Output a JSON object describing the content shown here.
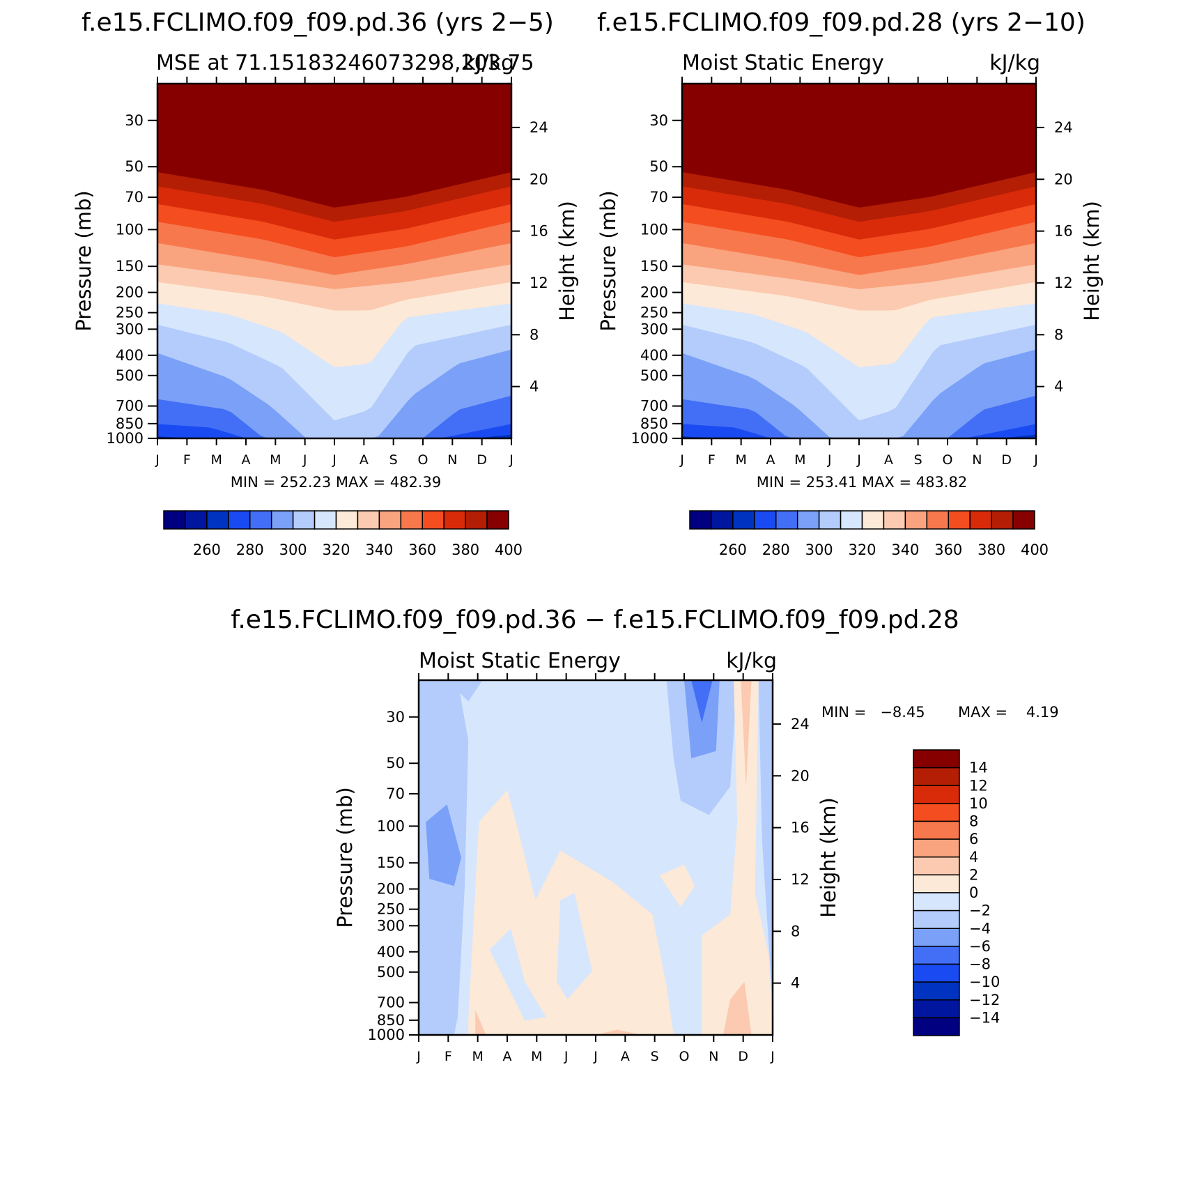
{
  "colors": {
    "scale": [
      "#000080",
      "#00169e",
      "#0033bf",
      "#1a4bf2",
      "#426ff5",
      "#7aa0f8",
      "#b3ccfb",
      "#d6e6fd",
      "#fde9d7",
      "#fbcab0",
      "#f9a47f",
      "#f8784d",
      "#f44d1f",
      "#d92b09",
      "#b31e05",
      "#870000"
    ]
  },
  "months": [
    "J",
    "F",
    "M",
    "A",
    "M",
    "J",
    "J",
    "A",
    "S",
    "O",
    "N",
    "D",
    "J"
  ],
  "pressure_ticks": [
    "30",
    "50",
    "70",
    "100",
    "150",
    "200",
    "250",
    "300",
    "400",
    "500",
    "700",
    "850",
    "1000"
  ],
  "height_ticks": [
    "4",
    "8",
    "12",
    "16",
    "20",
    "24"
  ],
  "y_title_left": "Pressure (mb)",
  "y_title_right": "Height (km)",
  "chart_data": [
    {
      "type": "contour",
      "title": "f.e15.FCLIMO.f09_f09.pd.36 (yrs 2−5)",
      "subtitle_left": "MSE at 71.15183246073298,203.75",
      "subtitle_right": "kJ/kg",
      "stats": "MIN = 252.23 MAX = 482.39",
      "colorbar_labels": [
        "260",
        "280",
        "300",
        "320",
        "340",
        "360",
        "380",
        "400"
      ],
      "levels": [
        260,
        270,
        280,
        290,
        300,
        310,
        320,
        330,
        340,
        350,
        360,
        370,
        380,
        390,
        400
      ],
      "ylim": [
        1000,
        20
      ]
    },
    {
      "type": "contour",
      "title": "f.e15.FCLIMO.f09_f09.pd.28 (yrs 2−10)",
      "subtitle_left": "Moist Static Energy",
      "subtitle_right": "kJ/kg",
      "stats": "MIN = 253.41 MAX = 483.82",
      "colorbar_labels": [
        "260",
        "280",
        "300",
        "320",
        "340",
        "360",
        "380",
        "400"
      ],
      "levels": [
        260,
        270,
        280,
        290,
        300,
        310,
        320,
        330,
        340,
        350,
        360,
        370,
        380,
        390,
        400
      ],
      "ylim": [
        1000,
        20
      ]
    },
    {
      "type": "contour",
      "title": "f.e15.FCLIMO.f09_f09.pd.36 − f.e15.FCLIMO.f09_f09.pd.28",
      "subtitle_left": "Moist Static Energy",
      "subtitle_right": "kJ/kg",
      "stats_min": "MIN =   −8.45",
      "stats_max": "MAX =    4.19",
      "colorbar_labels": [
        "14",
        "12",
        "10",
        "8",
        "6",
        "4",
        "2",
        "0",
        "−2",
        "−4",
        "−6",
        "−8",
        "−10",
        "−12",
        "−14"
      ],
      "levels": [
        -14,
        -12,
        -10,
        -8,
        -6,
        -4,
        -2,
        0,
        2,
        4,
        6,
        8,
        10,
        12,
        14
      ],
      "ylim": [
        1000,
        20
      ]
    }
  ]
}
